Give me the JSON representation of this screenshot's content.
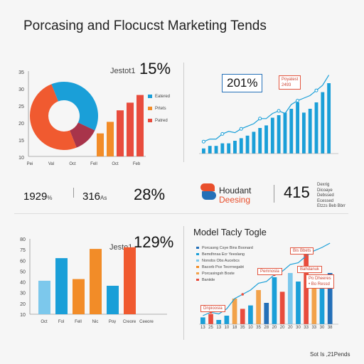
{
  "title": "Porcasing and Flocucst Marketing Tends",
  "footer": "Sot Is ,21Pends",
  "panel_tl": {
    "label": "Jestot1",
    "value": "15%",
    "legend": [
      {
        "label": "Eatered",
        "color": "#1a9fd8"
      },
      {
        "label": "Prtets",
        "color": "#f28c28"
      },
      {
        "label": "Patred",
        "color": "#e84c3d"
      }
    ]
  },
  "panel_tr": {
    "value_label": "201%",
    "note": "Poyatest\n2493"
  },
  "stats_row": {
    "stat1": "1929",
    "stat1_suffix": "%",
    "stat2": "316",
    "stat2_suffix": "As",
    "stat3": "28%",
    "brand_line1": "Houdant",
    "brand_line2": "Deesing",
    "stat4": "415",
    "stat4_note": "Dexrig\nDicoaye\nDebssed\nEcessed\nEtzzs Beb Bbrr"
  },
  "panel_bl": {
    "label": "Jesto1",
    "value": "129%"
  },
  "panel_br": {
    "title": "Model Tacly Togle",
    "legend": [
      {
        "label": "Porcasng Csye Bins Boonard",
        "color": "#2470b8"
      },
      {
        "label": "Bemdhnsa Ecr Yeeslang",
        "color": "#1a9fd8"
      },
      {
        "label": "Nonobs Obs Aucebcs",
        "color": "#7cc8ec"
      },
      {
        "label": "Bacorb Pce Tecrrnegabt",
        "color": "#f28c28"
      },
      {
        "label": "Porcasingsh Boste",
        "color": "#f2a24a"
      },
      {
        "label": "Baniide",
        "color": "#e84c3d"
      }
    ],
    "callouts": [
      "Dnpioosia",
      "Pemnosla",
      "Bis Bbets",
      "Bahdanuk",
      "Po Dheeres\n• Bo Ressd"
    ]
  },
  "chart_data": [
    {
      "type": "pie",
      "title": "",
      "donut": true,
      "slices": [
        {
          "label": "Eatered",
          "value": 38,
          "color": "#1a9fd8"
        },
        {
          "label": "Patred",
          "value": 12,
          "color": "#a8344a"
        },
        {
          "label": "Prtets",
          "value": 50,
          "color": "#f05a30"
        }
      ],
      "bars": {
        "categories": [
          "",
          "",
          "",
          "",
          ""
        ],
        "values": [
          6,
          9,
          12,
          14,
          16
        ],
        "colors": [
          "#f28c28",
          "#f28c28",
          "#e84c3d",
          "#e84c3d",
          "#e84c3d"
        ]
      },
      "yticks": [
        "10",
        "15",
        "20",
        "25",
        "30",
        "35"
      ],
      "xticks": [
        "Pei",
        "Val",
        "Oct",
        "Fell",
        "Oct",
        "Feb"
      ]
    },
    {
      "type": "bar",
      "title": "",
      "values": [
        4,
        6,
        6,
        8,
        8,
        10,
        12,
        14,
        17,
        20,
        22,
        28,
        30,
        32,
        35,
        40,
        32,
        35,
        40,
        48,
        55
      ],
      "line": [
        6,
        8,
        8,
        12,
        14,
        13,
        16,
        18,
        20,
        24,
        24,
        28,
        30,
        28,
        35,
        38,
        40,
        42,
        46,
        50,
        58
      ],
      "bar_color": "#1a9fd8",
      "line_color": "#1a9fd8"
    },
    {
      "type": "bar",
      "title": "",
      "categories": [
        "Oct",
        "Fol",
        "Fell",
        "Nic",
        "Poy",
        "Creore",
        "Ceeore"
      ],
      "values": [
        40,
        67,
        42,
        78,
        34,
        80,
        0
      ],
      "colors": [
        "#7cc8ec",
        "#1a9fd8",
        "#f28c28",
        "#f28c28",
        "#1a9fd8",
        "#f05a30",
        "#f05a30"
      ],
      "yticks": [
        "10",
        "20",
        "30",
        "40",
        "50",
        "60",
        "75",
        "80"
      ],
      "ylim": [
        0,
        90
      ]
    },
    {
      "type": "bar",
      "title": "",
      "categories": [
        "13",
        "25",
        "13",
        "10",
        "18",
        "35",
        "10",
        "35",
        "28",
        "20",
        "20",
        "20",
        "30",
        "33",
        "33",
        "30",
        "38"
      ],
      "values": [
        8,
        12,
        5,
        10,
        30,
        18,
        22,
        40,
        25,
        55,
        38,
        60,
        50,
        82,
        45,
        55,
        60
      ],
      "colors": [
        "#1a9fd8",
        "#e84c3d",
        "#1a9fd8",
        "#1a9fd8",
        "#f2a24a",
        "#e84c3d",
        "#1a9fd8",
        "#f2a24a",
        "#2470b8",
        "#1a9fd8",
        "#e84c3d",
        "#7cc8ec",
        "#1a9fd8",
        "#e84c3d",
        "#f2a24a",
        "#1a9fd8",
        "#2470b8"
      ],
      "line": [
        10,
        14,
        12,
        18,
        30,
        35,
        40,
        48,
        50,
        58,
        62,
        70,
        72,
        80,
        86,
        90,
        95
      ],
      "ylim": [
        0,
        100
      ]
    }
  ]
}
